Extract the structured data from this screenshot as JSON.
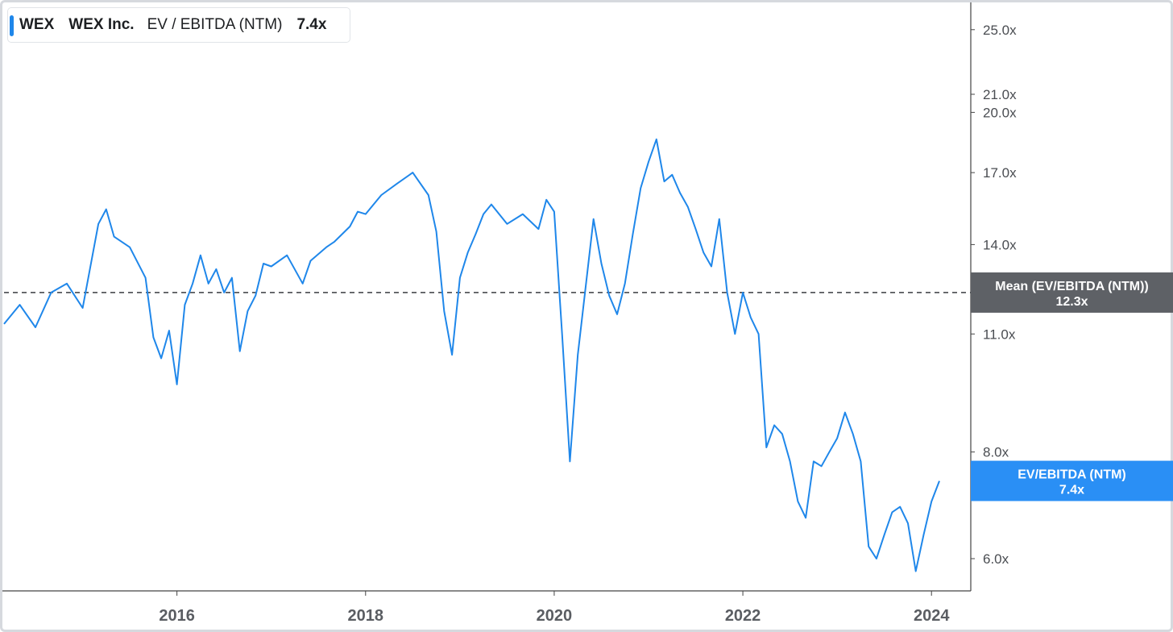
{
  "legend": {
    "ticker": "WEX",
    "company": "WEX Inc.",
    "metric": "EV / EBITDA (NTM)",
    "value": "7.4x"
  },
  "colors": {
    "series": "#1f87ea",
    "mean_tag": "#5e6166",
    "current_tag": "#2a8ff5"
  },
  "mean_tag": {
    "label": "Mean (EV/EBITDA (NTM))",
    "value": "12.3x"
  },
  "current_tag": {
    "label": "EV/EBITDA (NTM)",
    "value": "7.4x"
  },
  "chart_data": {
    "type": "line",
    "yscale": "log",
    "ylim": [
      5.5,
      26.5
    ],
    "xlim": [
      "2014-03",
      "2024-06"
    ],
    "ytick_values": [
      25,
      21,
      20,
      17,
      14,
      11,
      8,
      6
    ],
    "ytick_labels": [
      "25.0x",
      "21.0x",
      "20.0x",
      "17.0x",
      "14.0x",
      "11.0x",
      "8.0x",
      "6.0x"
    ],
    "xtick_values": [
      "2016-01",
      "2018-01",
      "2020-01",
      "2022-01",
      "2024-01"
    ],
    "xtick_labels": [
      "2016",
      "2018",
      "2020",
      "2022",
      "2024"
    ],
    "mean": 12.3,
    "grid": false,
    "series": [
      {
        "x": [
          "2014-03",
          "2014-05",
          "2014-07",
          "2014-09",
          "2014-11",
          "2015-01",
          "2015-03",
          "2015-04",
          "2015-05",
          "2015-07",
          "2015-09",
          "2015-10",
          "2015-11",
          "2015-12",
          "2016-01",
          "2016-02",
          "2016-03",
          "2016-04",
          "2016-05",
          "2016-06",
          "2016-07",
          "2016-08",
          "2016-09",
          "2016-10",
          "2016-11",
          "2016-12",
          "2017-01",
          "2017-03",
          "2017-05",
          "2017-06",
          "2017-08",
          "2017-09",
          "2017-11",
          "2017-12",
          "2018-01",
          "2018-03",
          "2018-05",
          "2018-07",
          "2018-09",
          "2018-10",
          "2018-11",
          "2018-12",
          "2019-01",
          "2019-02",
          "2019-03",
          "2019-04",
          "2019-05",
          "2019-07",
          "2019-09",
          "2019-11",
          "2019-12",
          "2020-01",
          "2020-02",
          "2020-03",
          "2020-04",
          "2020-05",
          "2020-06",
          "2020-07",
          "2020-08",
          "2020-09",
          "2020-10",
          "2020-11",
          "2020-12",
          "2021-01",
          "2021-02",
          "2021-03",
          "2021-04",
          "2021-05",
          "2021-06",
          "2021-07",
          "2021-08",
          "2021-09",
          "2021-10",
          "2021-11",
          "2021-12",
          "2022-01",
          "2022-02",
          "2022-03",
          "2022-04",
          "2022-05",
          "2022-06",
          "2022-07",
          "2022-08",
          "2022-09",
          "2022-10",
          "2022-11",
          "2022-12",
          "2023-01",
          "2023-02",
          "2023-03",
          "2023-04",
          "2023-05",
          "2023-06",
          "2023-07",
          "2023-08",
          "2023-09",
          "2023-10",
          "2023-11",
          "2023-12",
          "2024-01",
          "2024-02"
        ],
        "y": [
          11.3,
          11.9,
          11.2,
          12.3,
          12.6,
          11.8,
          14.8,
          15.4,
          14.3,
          13.9,
          12.8,
          10.9,
          10.3,
          11.1,
          9.6,
          11.9,
          12.6,
          13.6,
          12.6,
          13.1,
          12.3,
          12.8,
          10.5,
          11.7,
          12.2,
          13.3,
          13.2,
          13.6,
          12.6,
          13.4,
          13.9,
          14.1,
          14.7,
          15.3,
          15.2,
          16.0,
          16.5,
          17.0,
          16.0,
          14.5,
          11.7,
          10.4,
          12.8,
          13.7,
          14.4,
          15.2,
          15.6,
          14.8,
          15.2,
          14.6,
          15.8,
          15.3,
          11.0,
          7.8,
          10.4,
          12.5,
          15.0,
          13.3,
          12.2,
          11.6,
          12.6,
          14.4,
          16.3,
          17.5,
          18.6,
          16.6,
          16.9,
          16.1,
          15.5,
          14.6,
          13.7,
          13.2,
          15.0,
          12.3,
          11.0,
          12.3,
          11.5,
          11.0,
          8.1,
          8.6,
          8.4,
          7.8,
          7.0,
          6.7,
          7.8,
          7.7,
          8.0,
          8.3,
          8.9,
          8.4,
          7.8,
          6.2,
          6.0,
          6.4,
          6.8,
          6.9,
          6.6,
          5.8,
          6.4,
          7.0,
          7.4
        ]
      }
    ]
  }
}
